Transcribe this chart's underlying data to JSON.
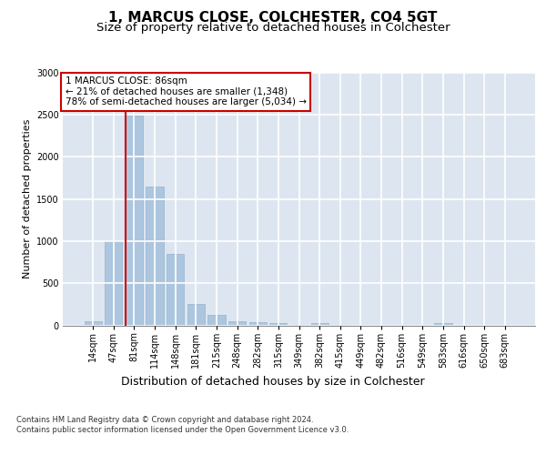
{
  "title1": "1, MARCUS CLOSE, COLCHESTER, CO4 5GT",
  "title2": "Size of property relative to detached houses in Colchester",
  "xlabel": "Distribution of detached houses by size in Colchester",
  "ylabel": "Number of detached properties",
  "bar_labels": [
    "14sqm",
    "47sqm",
    "81sqm",
    "114sqm",
    "148sqm",
    "181sqm",
    "215sqm",
    "248sqm",
    "282sqm",
    "315sqm",
    "349sqm",
    "382sqm",
    "415sqm",
    "449sqm",
    "482sqm",
    "516sqm",
    "549sqm",
    "583sqm",
    "616sqm",
    "650sqm",
    "683sqm"
  ],
  "bar_values": [
    50,
    1000,
    2490,
    1650,
    850,
    250,
    120,
    50,
    40,
    25,
    5,
    30,
    5,
    0,
    0,
    0,
    0,
    30,
    0,
    0,
    0
  ],
  "highlight_index": 2,
  "bar_color": "#adc6df",
  "highlight_line_color": "#cc0000",
  "annotation_text": "1 MARCUS CLOSE: 86sqm\n← 21% of detached houses are smaller (1,348)\n78% of semi-detached houses are larger (5,034) →",
  "annotation_box_color": "#ffffff",
  "annotation_box_edge": "#cc0000",
  "ylim": [
    0,
    3000
  ],
  "yticks": [
    0,
    500,
    1000,
    1500,
    2000,
    2500,
    3000
  ],
  "background_color": "#dde6f0",
  "grid_color": "#ffffff",
  "footer_text": "Contains HM Land Registry data © Crown copyright and database right 2024.\nContains public sector information licensed under the Open Government Licence v3.0.",
  "title1_fontsize": 11,
  "title2_fontsize": 9.5,
  "xlabel_fontsize": 9,
  "ylabel_fontsize": 8,
  "tick_fontsize": 7,
  "annotation_fontsize": 7.5
}
